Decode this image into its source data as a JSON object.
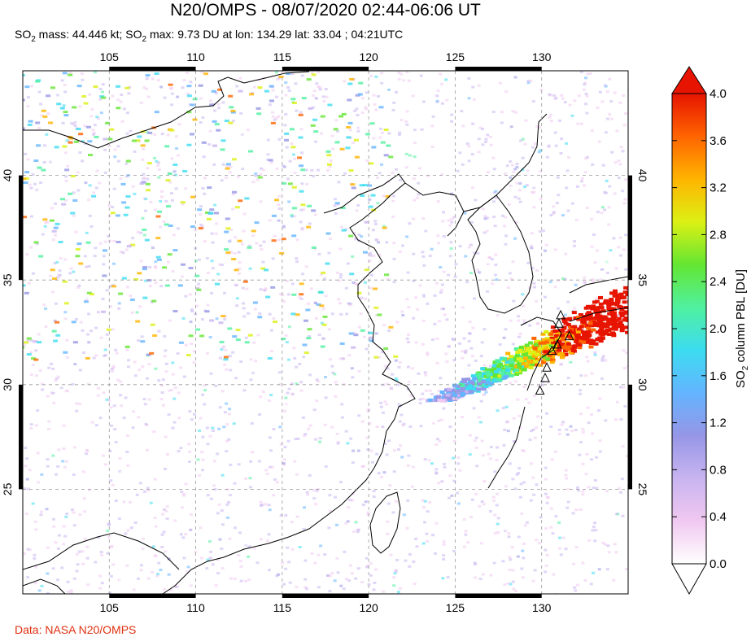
{
  "header": {
    "title": "N20/OMPS - 08/07/2020 02:44-06:06 UT",
    "so2_mass_prefix": "SO",
    "so2_mass_text": " mass: 44.446 kt; SO",
    "so2_max_text": " max: 9.73 DU at lon: 134.29 lat: 33.04 ; 04:21UTC",
    "subscript": "2"
  },
  "map": {
    "lon_range": [
      100,
      135
    ],
    "lat_range": [
      20,
      45
    ],
    "x_ticks": [
      105,
      110,
      115,
      120,
      125,
      130
    ],
    "x_tick_labels": [
      "105",
      "110",
      "115",
      "120",
      "125",
      "130"
    ],
    "y_ticks": [
      25,
      30,
      35,
      40
    ],
    "y_tick_labels": [
      "25",
      "30",
      "35",
      "40"
    ],
    "grid": true,
    "plume_max": {
      "lon": 134.29,
      "lat": 33.04,
      "value_du": 9.73
    }
  },
  "colorbar": {
    "label_main": "SO",
    "label_sub": "2",
    "label_rest": " column PBL [DU]",
    "ticks": [
      "0.0",
      "0.4",
      "0.8",
      "1.2",
      "1.6",
      "2.0",
      "2.4",
      "2.8",
      "3.2",
      "3.6",
      "4.0"
    ],
    "range": [
      0.0,
      4.0
    ],
    "colors": [
      "#ffffff",
      "#f0c8f0",
      "#c8b4f0",
      "#9696e6",
      "#64b4ff",
      "#3cdcf0",
      "#50f0a0",
      "#64e632",
      "#dcf014",
      "#ffb400",
      "#ff6400",
      "#e61400"
    ]
  },
  "footer": {
    "credit": "Data: NASA N20/OMPS"
  }
}
